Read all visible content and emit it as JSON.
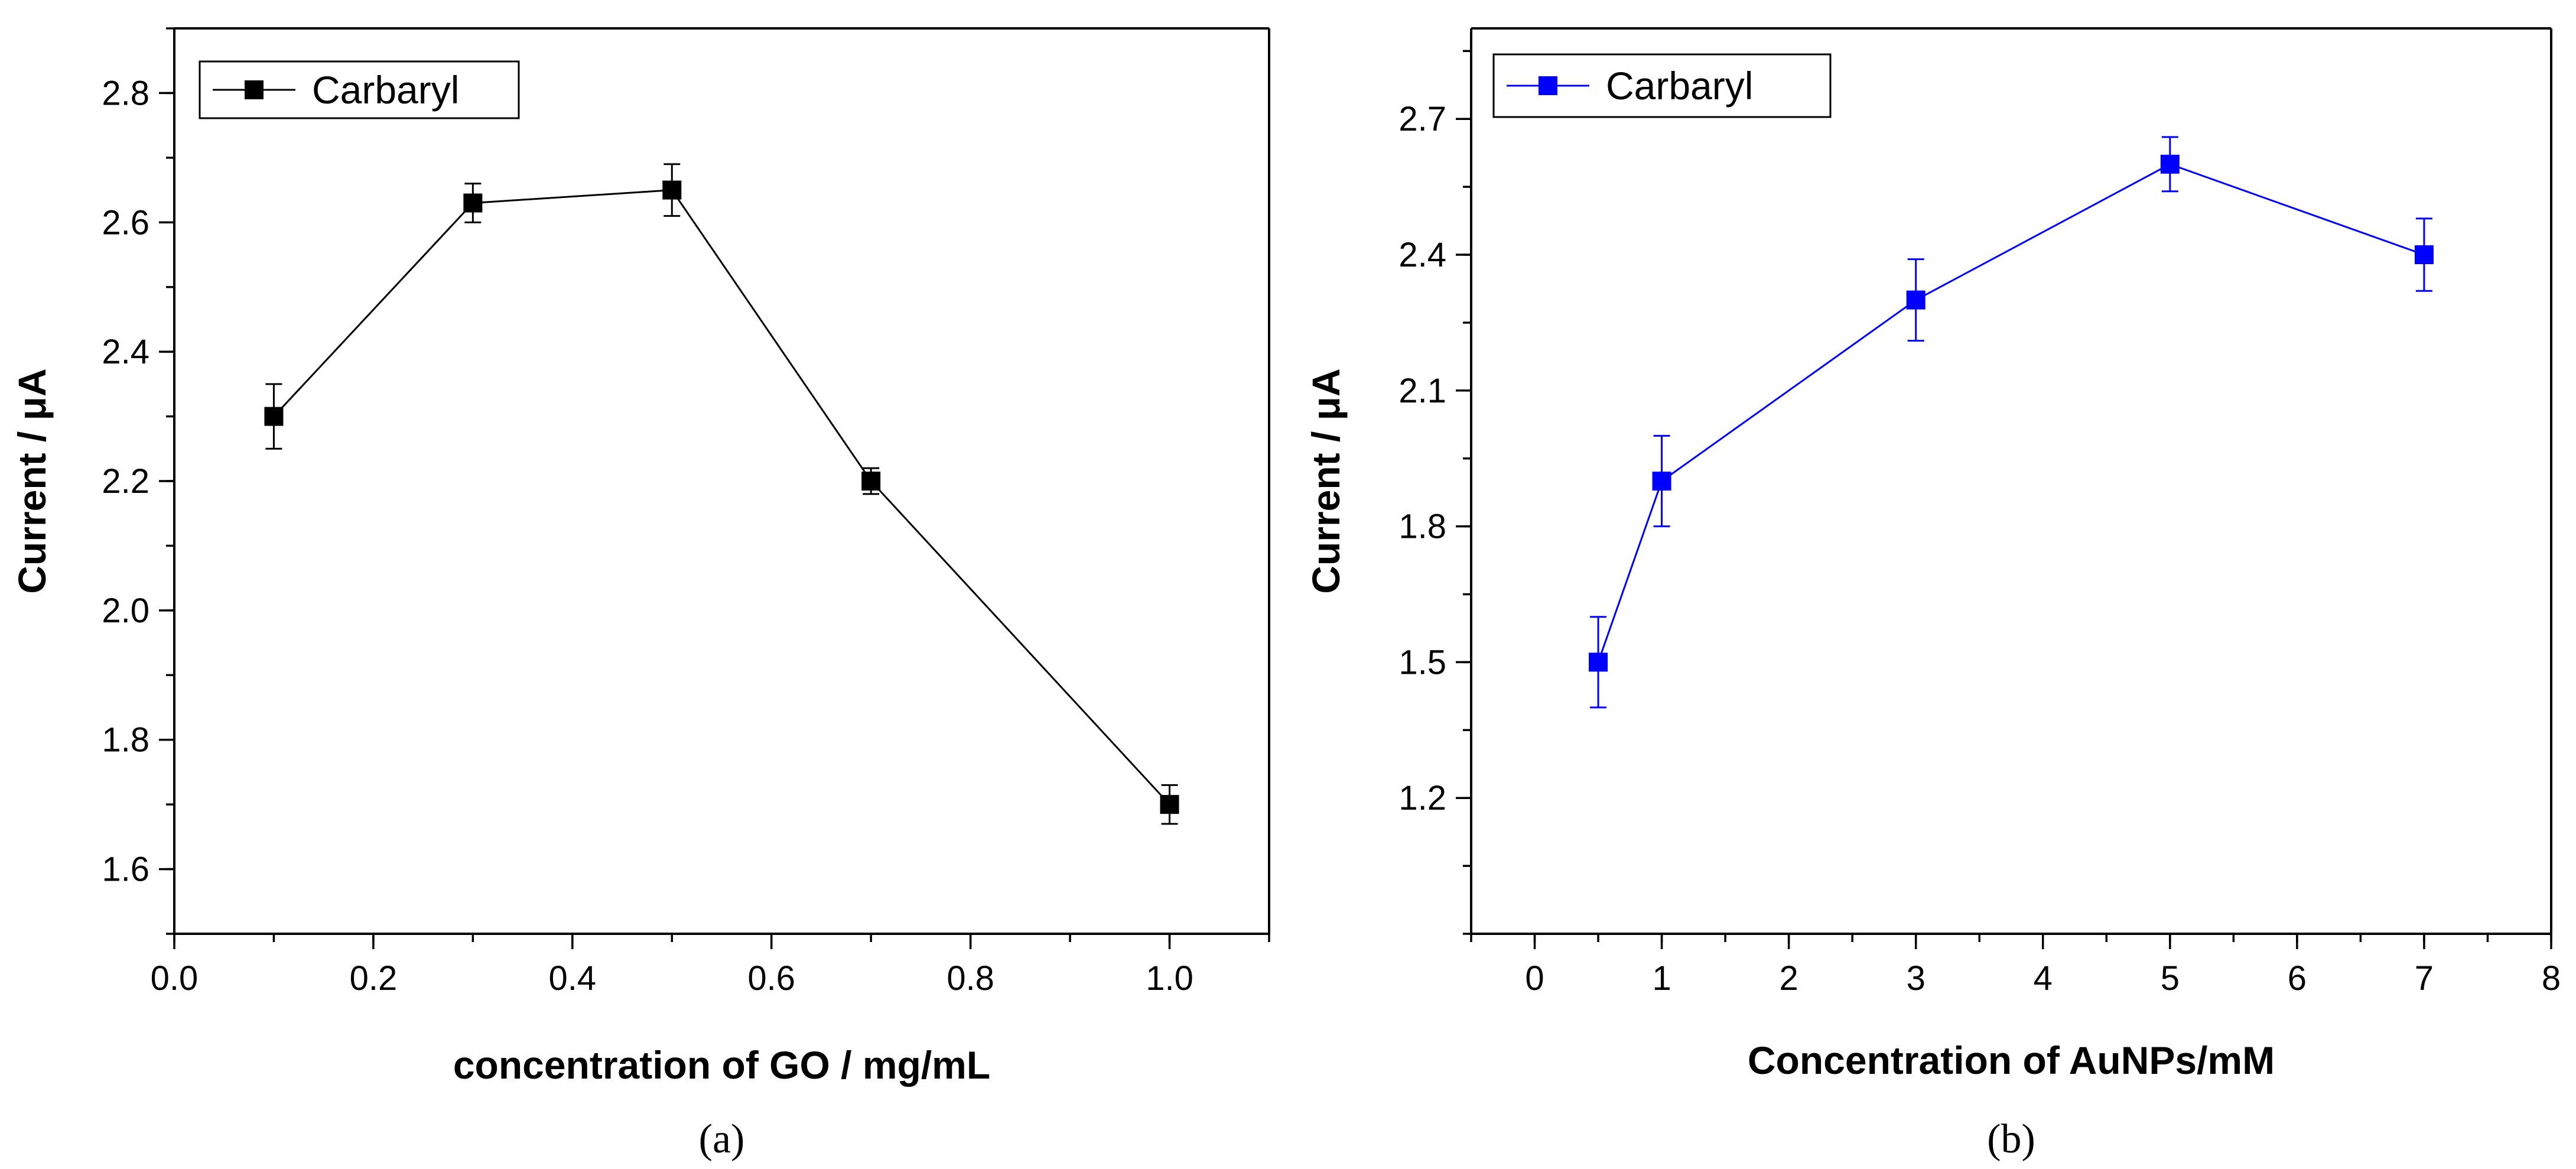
{
  "chart_data": [
    {
      "type": "line",
      "caption": "(a)",
      "xlabel": "concentration of GO / mg/mL",
      "ylabel": "Current / μA",
      "xlim": [
        0.0,
        1.1
      ],
      "ylim": [
        1.5,
        2.9
      ],
      "xticks": [
        0.0,
        0.2,
        0.4,
        0.6,
        0.8,
        1.0
      ],
      "xtick_labels": [
        "0.0",
        "0.2",
        "0.4",
        "0.6",
        "0.8",
        "1.0"
      ],
      "yticks": [
        1.6,
        1.8,
        2.0,
        2.2,
        2.4,
        2.6,
        2.8
      ],
      "ytick_labels": [
        "1.6",
        "1.8",
        "2.0",
        "2.2",
        "2.4",
        "2.6",
        "2.8"
      ],
      "legend_position": "top-left",
      "grid": false,
      "color": "#000000",
      "series": [
        {
          "name": "Carbaryl",
          "x": [
            0.1,
            0.3,
            0.5,
            0.7,
            1.0
          ],
          "y": [
            2.3,
            2.63,
            2.65,
            2.2,
            1.7
          ],
          "err": [
            0.05,
            0.03,
            0.04,
            0.02,
            0.03
          ]
        }
      ]
    },
    {
      "type": "line",
      "caption": "(b)",
      "xlabel": "Concentration of AuNPs/mM",
      "ylabel": "Current / μA",
      "xlim": [
        -0.5,
        8
      ],
      "ylim": [
        0.9,
        2.9
      ],
      "xticks": [
        0,
        1,
        2,
        3,
        4,
        5,
        6,
        7,
        8
      ],
      "xtick_labels": [
        "0",
        "1",
        "2",
        "3",
        "4",
        "5",
        "6",
        "7",
        "8"
      ],
      "yticks": [
        1.2,
        1.5,
        1.8,
        2.1,
        2.4,
        2.7
      ],
      "ytick_labels": [
        "1.2",
        "1.5",
        "1.8",
        "2.1",
        "2.4",
        "2.7"
      ],
      "legend_position": "top-left",
      "grid": false,
      "color": "#0000ff",
      "series": [
        {
          "name": "Carbaryl",
          "x": [
            0.5,
            1,
            3,
            5,
            7
          ],
          "y": [
            1.5,
            1.9,
            2.3,
            2.6,
            2.4
          ],
          "err": [
            0.1,
            0.1,
            0.09,
            0.06,
            0.08
          ]
        }
      ]
    }
  ]
}
